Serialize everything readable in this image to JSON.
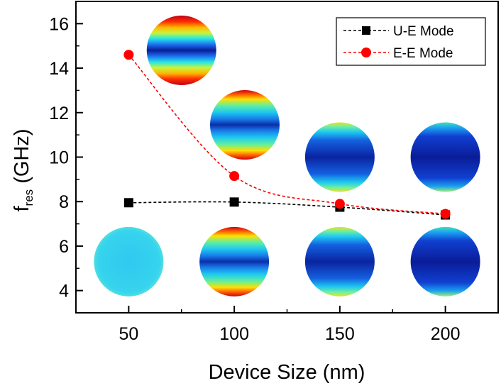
{
  "chart_data": {
    "type": "line",
    "xlabel": "Device Size (nm)",
    "ylabel": {
      "main": "f",
      "sub": "res",
      "unit": " (GHz)"
    },
    "xlim": [
      25,
      225
    ],
    "ylim": [
      3,
      17
    ],
    "xticks": [
      50,
      100,
      150,
      200
    ],
    "yticks": [
      4,
      6,
      8,
      10,
      12,
      14,
      16
    ],
    "grid": false,
    "legend_position": "top-right",
    "series": [
      {
        "name": "U-E Mode",
        "marker": "square",
        "color": "#000000",
        "x": [
          50,
          100,
          150,
          200
        ],
        "y": [
          7.95,
          7.98,
          7.75,
          7.4
        ]
      },
      {
        "name": "E-E Mode",
        "marker": "circle",
        "color": "#ff0000",
        "x": [
          50,
          100,
          150,
          200
        ],
        "y": [
          14.6,
          9.15,
          7.9,
          7.45
        ]
      }
    ],
    "insets": [
      {
        "name": "inset-ee-50",
        "x": 75,
        "y": 14.8,
        "profile": "strong"
      },
      {
        "name": "inset-ee-100",
        "x": 105,
        "y": 11.45,
        "profile": "medium"
      },
      {
        "name": "inset-ee-150",
        "x": 150,
        "y": 10.0,
        "profile": "weak"
      },
      {
        "name": "inset-ee-200",
        "x": 200,
        "y": 10.0,
        "profile": "faint"
      },
      {
        "name": "inset-ue-50",
        "x": 50,
        "y": 5.3,
        "profile": "uniform"
      },
      {
        "name": "inset-ue-100",
        "x": 100,
        "y": 5.3,
        "profile": "medium"
      },
      {
        "name": "inset-ue-150",
        "x": 150,
        "y": 5.3,
        "profile": "weak"
      },
      {
        "name": "inset-ue-200",
        "x": 200,
        "y": 5.3,
        "profile": "faint"
      }
    ]
  }
}
